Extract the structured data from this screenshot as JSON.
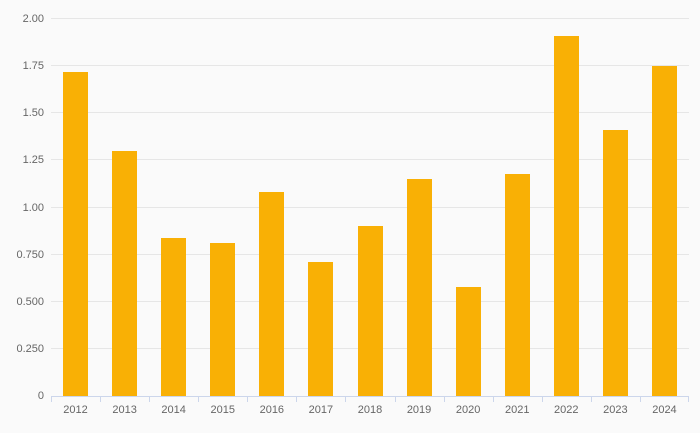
{
  "chart_data": {
    "type": "bar",
    "title": "",
    "xlabel": "",
    "ylabel": "",
    "categories": [
      "2012",
      "2013",
      "2014",
      "2015",
      "2016",
      "2017",
      "2018",
      "2019",
      "2020",
      "2021",
      "2022",
      "2023",
      "2024"
    ],
    "values": [
      1.72,
      1.3,
      0.84,
      0.81,
      1.08,
      0.71,
      0.9,
      1.15,
      0.58,
      1.18,
      1.91,
      1.41,
      1.75
    ],
    "ylim": [
      0,
      2.0
    ],
    "y_ticks": [
      {
        "value": 0.0,
        "label": "0"
      },
      {
        "value": 0.25,
        "label": "0.250"
      },
      {
        "value": 0.5,
        "label": "0.500"
      },
      {
        "value": 0.75,
        "label": "0.750"
      },
      {
        "value": 1.0,
        "label": "1.00"
      },
      {
        "value": 1.25,
        "label": "1.25"
      },
      {
        "value": 1.5,
        "label": "1.50"
      },
      {
        "value": 1.75,
        "label": "1.75"
      },
      {
        "value": 2.0,
        "label": "2.00"
      }
    ],
    "grid": true,
    "legend": false,
    "colors": {
      "bar": "#f9b005",
      "background": "#fafafa",
      "gridline": "#e6e6e6",
      "axis_line": "#ccd6eb",
      "label_text": "#666666"
    }
  }
}
